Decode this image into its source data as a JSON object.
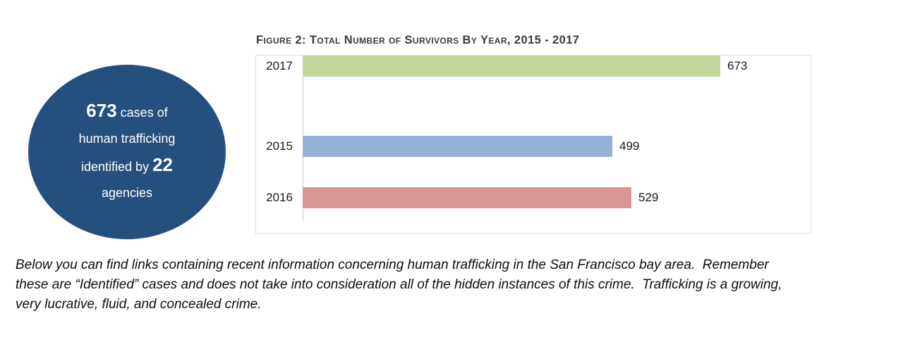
{
  "infographic": {
    "fill_color": "#254F7C",
    "big_number_1": "673",
    "rest_1": " cases of",
    "line_2": "human trafficking",
    "pre_3": "identified by ",
    "big_number_3": "22",
    "line_4": "agencies"
  },
  "chart_data": {
    "type": "bar",
    "orientation": "horizontal",
    "title": "Figure 2: Total Number of Survivors By Year, 2015 - 2017",
    "categories": [
      "2015",
      "2016",
      "2017"
    ],
    "values": [
      499,
      529,
      673
    ],
    "colors": [
      "#95B3D7",
      "#D99694",
      "#C3D69B"
    ],
    "xlabel": "",
    "ylabel": "",
    "xlim": [
      0,
      800
    ],
    "grid": false,
    "legend": false,
    "data_labels": true
  },
  "paragraph": {
    "lines": [
      "Below you can find links containing recent information concerning human trafficking in the San Francisco bay area.  Remember",
      "these are “Identified” cases and does not take into consideration all of the hidden instances of this crime.  Trafficking is a growing,",
      "very lucrative, fluid, and concealed crime."
    ]
  }
}
